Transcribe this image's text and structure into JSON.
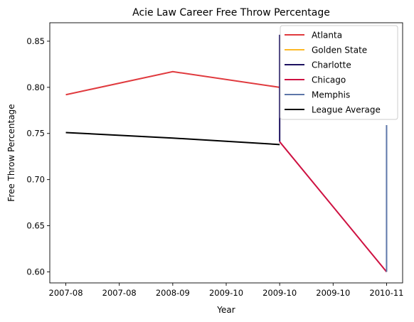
{
  "chart_data": {
    "type": "line",
    "title": "Acie Law Career Free Throw Percentage",
    "xlabel": "Year",
    "ylabel": "Free Throw Percentage",
    "x_ticks": [
      "2007-08",
      "2007-08",
      "2008-09",
      "2009-10",
      "2009-10",
      "2009-10",
      "2010-11"
    ],
    "x_range": [
      -0.15,
      3.15
    ],
    "ylim": [
      0.588,
      0.87
    ],
    "y_ticks": [
      0.6,
      0.65,
      0.7,
      0.75,
      0.8,
      0.85
    ],
    "y_tick_labels": [
      "0.60",
      "0.65",
      "0.70",
      "0.75",
      "0.80",
      "0.85"
    ],
    "legend_position": "top-right",
    "series": [
      {
        "name": "Atlanta",
        "color": "#E03A3E",
        "x": [
          0,
          1,
          2
        ],
        "y": [
          0.792,
          0.817,
          0.8
        ]
      },
      {
        "name": "Golden State",
        "color": "#FDB927",
        "x": [],
        "y": []
      },
      {
        "name": "Charlotte",
        "color": "#1D1160",
        "x": [
          2,
          2
        ],
        "y": [
          0.741,
          0.857
        ]
      },
      {
        "name": "Chicago",
        "color": "#CE1141",
        "x": [
          2,
          3
        ],
        "y": [
          0.741,
          0.6
        ]
      },
      {
        "name": "Memphis",
        "color": "#5D76A9",
        "x": [
          3,
          3
        ],
        "y": [
          0.6,
          0.759
        ]
      },
      {
        "name": "League Average",
        "color": "#000000",
        "x": [
          0,
          1,
          2
        ],
        "y": [
          0.751,
          0.745,
          0.738
        ]
      }
    ]
  }
}
